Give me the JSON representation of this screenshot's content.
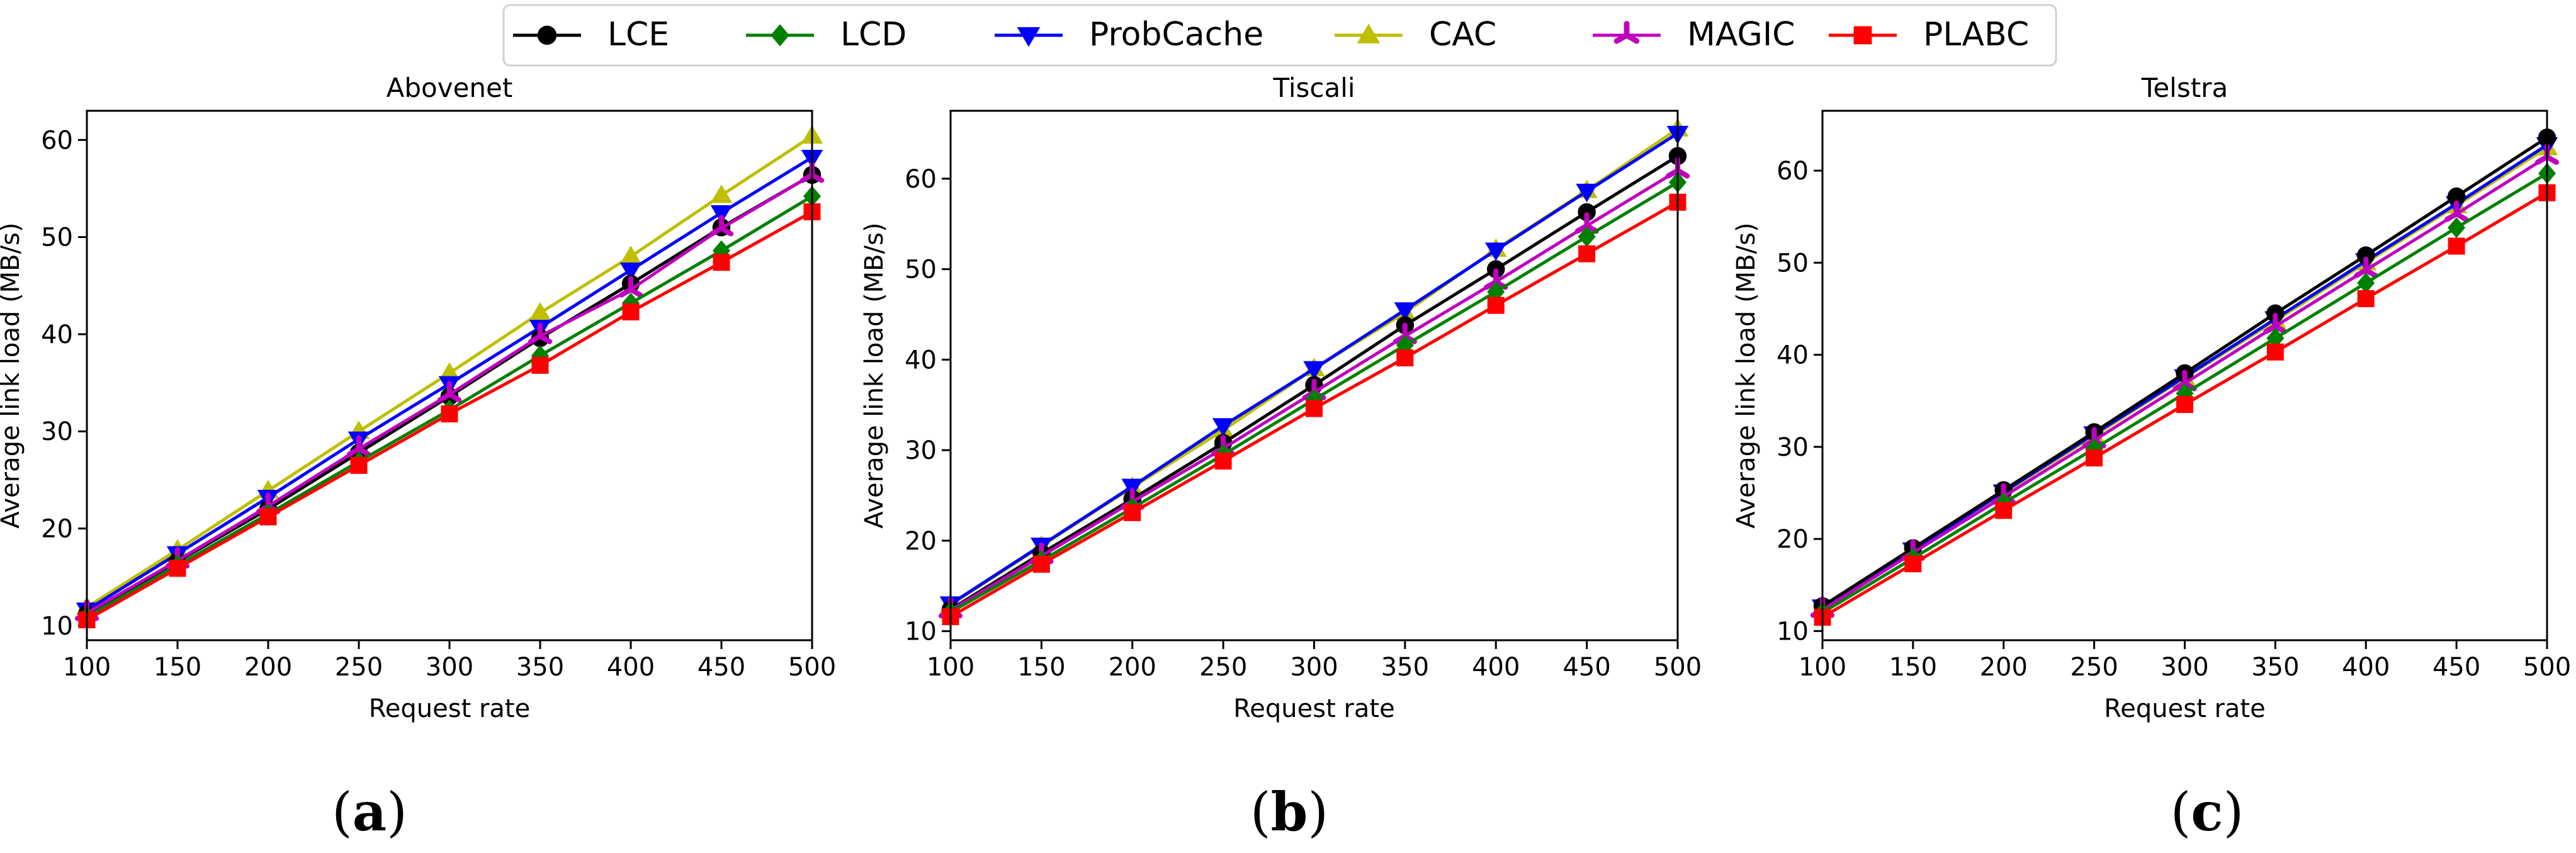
{
  "legend": [
    {
      "name": "LCE",
      "color": "#000000",
      "marker": "circle"
    },
    {
      "name": "LCD",
      "color": "#008000",
      "marker": "diamond"
    },
    {
      "name": "ProbCache",
      "color": "#0000ff",
      "marker": "triangle-down"
    },
    {
      "name": "CAC",
      "color": "#bfbf00",
      "marker": "triangle-up"
    },
    {
      "name": "MAGIC",
      "color": "#bf00bf",
      "marker": "tri-star"
    },
    {
      "name": "PLABC",
      "color": "#ff0000",
      "marker": "square"
    }
  ],
  "chart_data": [
    {
      "type": "line",
      "title": "Abovenet",
      "panel_label": "a",
      "xlabel": "Request rate",
      "ylabel": "Average link load (MB/s)",
      "xlim": [
        100,
        500
      ],
      "ylim": [
        8.5,
        63
      ],
      "xticks": [
        "100",
        "150",
        "200",
        "250",
        "300",
        "350",
        "400",
        "450",
        "500"
      ],
      "yticks": [
        "10",
        "20",
        "30",
        "40",
        "50",
        "60"
      ],
      "x": [
        100,
        150,
        200,
        250,
        300,
        350,
        400,
        450,
        500
      ],
      "series": [
        {
          "name": "LCE",
          "values": [
            11.2,
            16.6,
            22.0,
            27.8,
            33.6,
            39.6,
            45.2,
            51.0,
            56.4
          ]
        },
        {
          "name": "LCD",
          "values": [
            10.9,
            16.2,
            21.5,
            26.9,
            32.2,
            37.8,
            43.2,
            48.6,
            54.2
          ]
        },
        {
          "name": "ProbCache",
          "values": [
            11.6,
            17.4,
            23.2,
            29.2,
            34.9,
            40.7,
            46.6,
            52.5,
            58.2
          ]
        },
        {
          "name": "CAC",
          "values": [
            11.9,
            17.8,
            23.9,
            30.0,
            36.0,
            42.2,
            48.0,
            54.3,
            60.4
          ]
        },
        {
          "name": "MAGIC",
          "values": [
            11.3,
            16.7,
            22.3,
            28.2,
            33.8,
            39.8,
            44.6,
            50.9,
            56.4
          ]
        },
        {
          "name": "PLABC",
          "values": [
            10.6,
            15.9,
            21.2,
            26.5,
            31.8,
            36.8,
            42.3,
            47.4,
            52.6
          ]
        }
      ]
    },
    {
      "type": "line",
      "title": "Tiscali",
      "panel_label": "b",
      "xlabel": "Request rate",
      "ylabel": "Average link load (MB/s)",
      "xlim": [
        100,
        500
      ],
      "ylim": [
        9,
        67.5
      ],
      "xticks": [
        "100",
        "150",
        "200",
        "250",
        "300",
        "350",
        "400",
        "450",
        "500"
      ],
      "yticks": [
        "10",
        "20",
        "30",
        "40",
        "50",
        "60"
      ],
      "x": [
        100,
        150,
        200,
        250,
        300,
        350,
        400,
        450,
        500
      ],
      "series": [
        {
          "name": "LCE",
          "values": [
            12.4,
            18.6,
            24.6,
            30.8,
            37.2,
            43.8,
            50.0,
            56.3,
            62.5
          ]
        },
        {
          "name": "LCD",
          "values": [
            12.1,
            17.8,
            23.6,
            29.5,
            35.6,
            41.6,
            47.5,
            53.6,
            59.6
          ]
        },
        {
          "name": "ProbCache",
          "values": [
            13.0,
            19.5,
            26.0,
            32.7,
            39.0,
            45.5,
            52.1,
            58.6,
            65.0
          ]
        },
        {
          "name": "CAC",
          "values": [
            12.9,
            19.4,
            25.9,
            32.2,
            39.0,
            45.2,
            52.2,
            58.7,
            65.5
          ]
        },
        {
          "name": "MAGIC",
          "values": [
            12.3,
            18.3,
            24.3,
            30.2,
            36.4,
            42.6,
            48.6,
            54.8,
            60.9
          ]
        },
        {
          "name": "PLABC",
          "values": [
            11.6,
            17.4,
            23.1,
            28.8,
            34.6,
            40.2,
            46.0,
            51.7,
            57.4
          ]
        }
      ]
    },
    {
      "type": "line",
      "title": "Telstra",
      "panel_label": "c",
      "xlabel": "Request rate",
      "ylabel": "Average link load (MB/s)",
      "xlim": [
        100,
        500
      ],
      "ylim": [
        9,
        66.5
      ],
      "xticks": [
        "100",
        "150",
        "200",
        "250",
        "300",
        "350",
        "400",
        "450",
        "500"
      ],
      "yticks": [
        "10",
        "20",
        "30",
        "40",
        "50",
        "60"
      ],
      "x": [
        100,
        150,
        200,
        250,
        300,
        350,
        400,
        450,
        500
      ],
      "series": [
        {
          "name": "LCE",
          "values": [
            12.7,
            19.0,
            25.3,
            31.6,
            38.0,
            44.5,
            50.8,
            57.2,
            63.6
          ]
        },
        {
          "name": "LCD",
          "values": [
            12.0,
            17.9,
            23.9,
            29.8,
            35.8,
            41.8,
            47.8,
            53.8,
            59.7
          ]
        },
        {
          "name": "ProbCache",
          "values": [
            12.6,
            18.8,
            25.1,
            31.4,
            37.6,
            43.9,
            50.2,
            56.4,
            62.8
          ]
        },
        {
          "name": "CAC",
          "values": [
            12.5,
            18.7,
            25.0,
            31.2,
            37.5,
            43.7,
            50.0,
            56.2,
            62.5
          ]
        },
        {
          "name": "MAGIC",
          "values": [
            12.3,
            18.5,
            24.6,
            30.7,
            36.9,
            43.1,
            49.2,
            55.3,
            61.5
          ]
        },
        {
          "name": "PLABC",
          "values": [
            11.5,
            17.3,
            23.1,
            28.8,
            34.6,
            40.3,
            46.1,
            51.8,
            57.6
          ]
        }
      ]
    }
  ]
}
